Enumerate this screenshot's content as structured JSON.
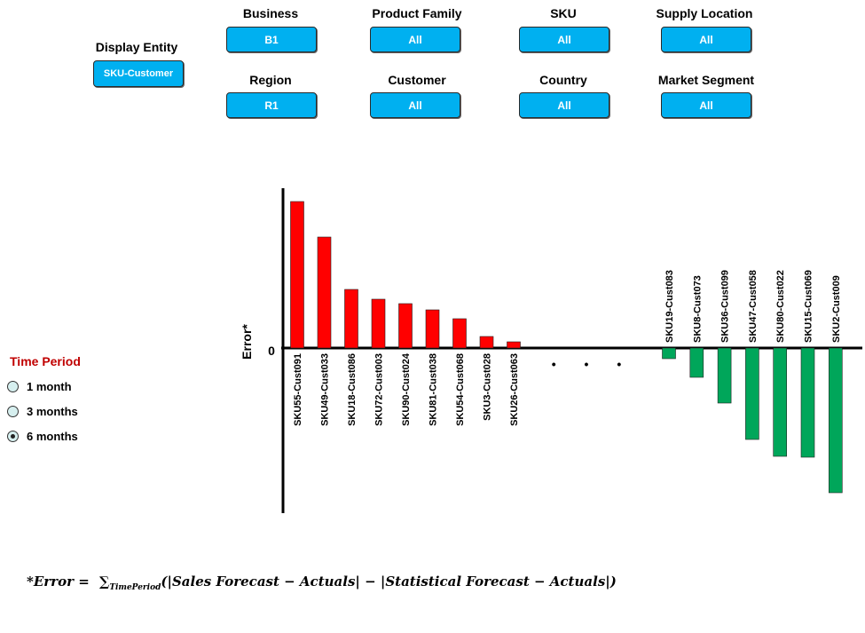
{
  "filters": {
    "display_entity": {
      "label": "Display Entity",
      "value": "SKU-Customer"
    },
    "business": {
      "label": "Business",
      "value": "B1"
    },
    "product_family": {
      "label": "Product Family",
      "value": "All"
    },
    "sku": {
      "label": "SKU",
      "value": "All"
    },
    "supply_location": {
      "label": "Supply Location",
      "value": "All"
    },
    "region": {
      "label": "Region",
      "value": "R1"
    },
    "customer": {
      "label": "Customer",
      "value": "All"
    },
    "country": {
      "label": "Country",
      "value": "All"
    },
    "market_segment": {
      "label": "Market Segment",
      "value": "All"
    }
  },
  "time_period": {
    "title": "Time Period",
    "options": [
      "1 month",
      "3 months",
      "6 months"
    ],
    "selected": "6 months"
  },
  "chart_data": {
    "type": "bar",
    "ylabel": "Error*",
    "y_tick_label": "0",
    "grid": false,
    "positive_color": "#ff0000",
    "negative_color": "#00a65a",
    "ellipsis": "• • •",
    "positive": {
      "categories": [
        "SKU55-Cust091",
        "SKU49-Cust033",
        "SKU18-Cust086",
        "SKU72-Cust003",
        "SKU90-Cust024",
        "SKU81-Cust038",
        "SKU54-Cust068",
        "SKU3-Cust028",
        "SKU26-Cust063"
      ],
      "values": [
        165,
        125,
        66,
        55,
        50,
        43,
        33,
        13,
        7
      ]
    },
    "negative": {
      "categories": [
        "SKU19-Cust083",
        "SKU8-Cust073",
        "SKU36-Cust099",
        "SKU47-Cust058",
        "SKU80-Cust022",
        "SKU15-Cust069",
        "SKU2-Cust009"
      ],
      "values": [
        -12,
        -33,
        -62,
        -103,
        -122,
        -123,
        -163
      ]
    }
  },
  "footnote": {
    "lhs": "*Error =",
    "sum_sub": "TimePeriod",
    "rhs": "(|Sales Forecast − Actuals| − |Statistical Forecast − Actuals|)"
  }
}
